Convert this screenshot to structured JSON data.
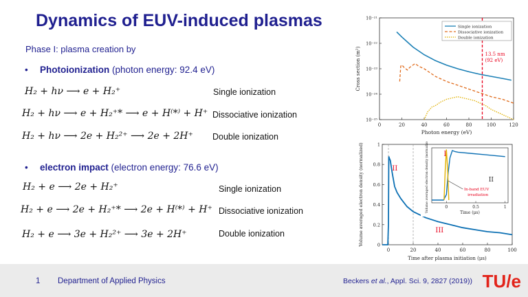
{
  "slide": {
    "title": "Dynamics of EUV-induced plasmas",
    "phase": "Phase I: plasma creation by",
    "bullets": [
      {
        "bold": "Photoionization",
        "rest": " (photon energy: 92.4 eV)"
      },
      {
        "bold": "electron impact",
        "rest": " (electron energy: 76.6 eV)"
      }
    ],
    "photo_equations": [
      {
        "eq": "H₂ + hν ⟶ e + H₂⁺",
        "label": "Single ionization"
      },
      {
        "eq": "H₂ + hν ⟶ e + H₂⁺* ⟶ e + H⁽*⁾ + H⁺",
        "label": "Dissociative ionization"
      },
      {
        "eq": "H₂ + hν ⟶   2e + H₂²⁺ ⟶ 2e + 2H⁺",
        "label": "Double ionization"
      }
    ],
    "impact_equations": [
      {
        "eq": "H₂ + e ⟶ 2e + H₂⁺",
        "label": "Single ionization"
      },
      {
        "eq": "H₂ + e ⟶ 2e + H₂⁺* ⟶ 2e + H⁽*⁾ + H⁺",
        "label": "Dissociative ionization"
      },
      {
        "eq": "H₂ + e ⟶   3e + H₂²⁺ ⟶ 3e + 2H⁺",
        "label": "Double ionization"
      }
    ]
  },
  "footer": {
    "page_number": "1",
    "department": "Department of Applied Physics",
    "citation_prefix": "Beckers ",
    "citation_italic": "et al.",
    "citation_suffix": ", Appl. Sci. 9, 2827 (2019))",
    "logo": "TU/e"
  },
  "chart_data": [
    {
      "type": "line",
      "ylabel": "Cross section (m²)",
      "xlabel": "Photon energy (eV)",
      "x_ticks": [
        "0",
        "20",
        "40",
        "60",
        "80",
        "100",
        "120"
      ],
      "y_ticks": [
        "10⁻²¹",
        "10⁻²²",
        "10⁻²³",
        "10⁻²⁴",
        "10⁻²⁵"
      ],
      "xlim": [
        0,
        120
      ],
      "ylim_log10": [
        -25,
        -21
      ],
      "annotation": [
        "13.5 nm",
        "(92 eV)"
      ],
      "marker_x": 92,
      "legend_position": "top-right",
      "colors": {
        "single": "#1a7fb5",
        "dissociative": "#e06a1a",
        "double": "#e0b000",
        "marker": "#e8001c"
      },
      "series": [
        {
          "name": "Single ionization",
          "style": "solid",
          "x": [
            15.4,
            20,
            25,
            30,
            40,
            50,
            60,
            70,
            80,
            90,
            100,
            110,
            118
          ],
          "log10_y": [
            -21.55,
            -21.75,
            -21.95,
            -22.15,
            -22.45,
            -22.68,
            -22.86,
            -23.0,
            -23.12,
            -23.22,
            -23.3,
            -23.38,
            -23.45
          ]
        },
        {
          "name": "Dissociative ionization",
          "style": "dashed",
          "x": [
            18.1,
            19,
            20,
            22,
            25,
            27,
            30,
            32,
            35,
            40,
            50,
            60,
            70,
            80,
            90,
            100,
            110,
            120
          ],
          "log10_y": [
            -23.5,
            -22.9,
            -22.85,
            -22.95,
            -23.05,
            -22.95,
            -22.85,
            -22.8,
            -22.9,
            -23.0,
            -23.3,
            -23.5,
            -23.65,
            -23.8,
            -23.95,
            -24.1,
            -24.2,
            -24.35
          ]
        },
        {
          "name": "Double ionization",
          "style": "dotted",
          "x": [
            40,
            43,
            47,
            50,
            55,
            60,
            65,
            70,
            75,
            80,
            85,
            90,
            95,
            100,
            110,
            120
          ],
          "log10_y": [
            -25.0,
            -24.7,
            -24.5,
            -24.45,
            -24.3,
            -24.2,
            -24.15,
            -24.1,
            -24.15,
            -24.2,
            -24.25,
            -24.35,
            -24.45,
            -24.6,
            -24.8,
            -25.0
          ]
        }
      ]
    },
    {
      "type": "line",
      "ylabel": "Volume averaged electron density (normalized)",
      "xlabel": "Time after plasma initiation (μs)",
      "x_ticks": [
        "0",
        "20",
        "40",
        "60",
        "80",
        "100"
      ],
      "y_ticks": [
        "0",
        "0.2",
        "0.4",
        "0.6",
        "0.8",
        "1"
      ],
      "xlim": [
        -5,
        100
      ],
      "ylim": [
        0,
        1
      ],
      "region_lines_x": [
        0,
        20
      ],
      "regions": [
        "I",
        "II",
        "III"
      ],
      "series": [
        {
          "name": "",
          "color": "#0b6fb3",
          "x": [
            -5,
            -0.5,
            0,
            0.3,
            0.8,
            1.5,
            2,
            3,
            5,
            7,
            10,
            15,
            20,
            25,
            30,
            40,
            50,
            60,
            70,
            80,
            90,
            100
          ],
          "y": [
            0,
            0,
            0.2,
            0.88,
            0.86,
            0.84,
            0.8,
            0.72,
            0.58,
            0.52,
            0.46,
            0.38,
            0.33,
            0.3,
            0.27,
            0.23,
            0.2,
            0.17,
            0.15,
            0.13,
            0.12,
            0.1
          ]
        }
      ],
      "inset": {
        "ylabel": "Volume averaged electron density (normalized)",
        "xlabel": "Time (μs)",
        "x_ticks": [
          "0",
          "0.5",
          "1"
        ],
        "xlim": [
          -0.25,
          1.05
        ],
        "regions": [
          "I",
          "II"
        ],
        "annotation": [
          "In-band EUV",
          "irradiation"
        ],
        "series": [
          {
            "name": "density",
            "color": "#0b6fb3",
            "x": [
              -0.25,
              -0.05,
              0,
              0.03,
              0.06,
              0.1,
              0.15,
              0.2,
              0.4,
              0.6,
              0.8,
              1.0
            ],
            "y": [
              0.05,
              0.05,
              0.15,
              0.55,
              0.82,
              0.95,
              0.93,
              0.92,
              0.9,
              0.88,
              0.86,
              0.84
            ]
          },
          {
            "name": "in-band EUV irradiation",
            "color": "#e0b000",
            "x": [
              -0.04,
              -0.02,
              0,
              0.02,
              0.04
            ],
            "y": [
              0.05,
              0.6,
              0.97,
              0.6,
              0.05
            ]
          }
        ]
      }
    }
  ]
}
